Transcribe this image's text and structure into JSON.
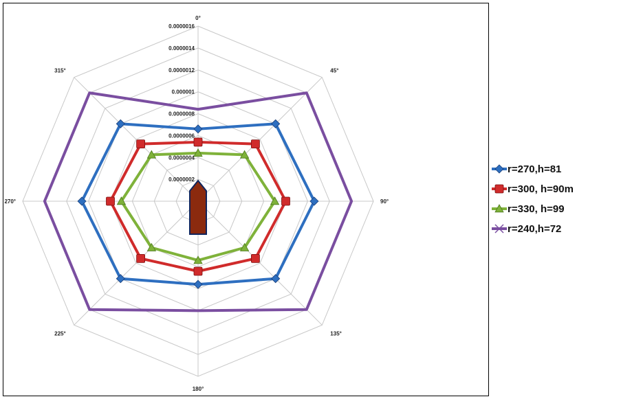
{
  "chart_data": {
    "type": "radar",
    "categories": [
      "0°",
      "45°",
      "90°",
      "135°",
      "180°",
      "225°",
      "270°",
      "315°"
    ],
    "rlim": [
      0,
      1.6e-06
    ],
    "ticks": [
      "0.0000002",
      "0.0000004",
      "0.0000006",
      "0.0000008",
      "0.000001",
      "0.0000012",
      "0.0000014",
      "0.0000016"
    ],
    "tick_values": [
      2e-07,
      4e-07,
      6e-07,
      8e-07,
      1e-06,
      1.2e-06,
      1.4e-06,
      1.6e-06
    ],
    "grid": true,
    "legend_position": "right",
    "series": [
      {
        "name": "r=270,h=81",
        "color": "#2e6fc0",
        "marker": "diamond",
        "values": [
          6.6e-07,
          1e-06,
          1.06e-06,
          1e-06,
          7.6e-07,
          1e-06,
          1.06e-06,
          1e-06
        ]
      },
      {
        "name": "r=300, h=90m",
        "color": "#d02b2b",
        "marker": "square",
        "values": [
          5.4e-07,
          7.4e-07,
          8e-07,
          7.4e-07,
          6.4e-07,
          7.4e-07,
          8e-07,
          7.4e-07
        ]
      },
      {
        "name": "r=330, h=99",
        "color": "#7fb23a",
        "marker": "triangle",
        "values": [
          4.4e-07,
          6e-07,
          7e-07,
          6e-07,
          5.4e-07,
          6e-07,
          7e-07,
          6e-07
        ]
      },
      {
        "name": "r=240,h=72",
        "color": "#7a4ea0",
        "marker": "x",
        "values": [
          8.4e-07,
          1.4e-06,
          1.4e-06,
          1.4e-06,
          1e-06,
          1.4e-06,
          1.4e-06,
          1.4e-06
        ]
      }
    ],
    "center_marker": {
      "shape": "pentagon",
      "fill": "#8b2a0e",
      "stroke": "#10245c"
    }
  }
}
